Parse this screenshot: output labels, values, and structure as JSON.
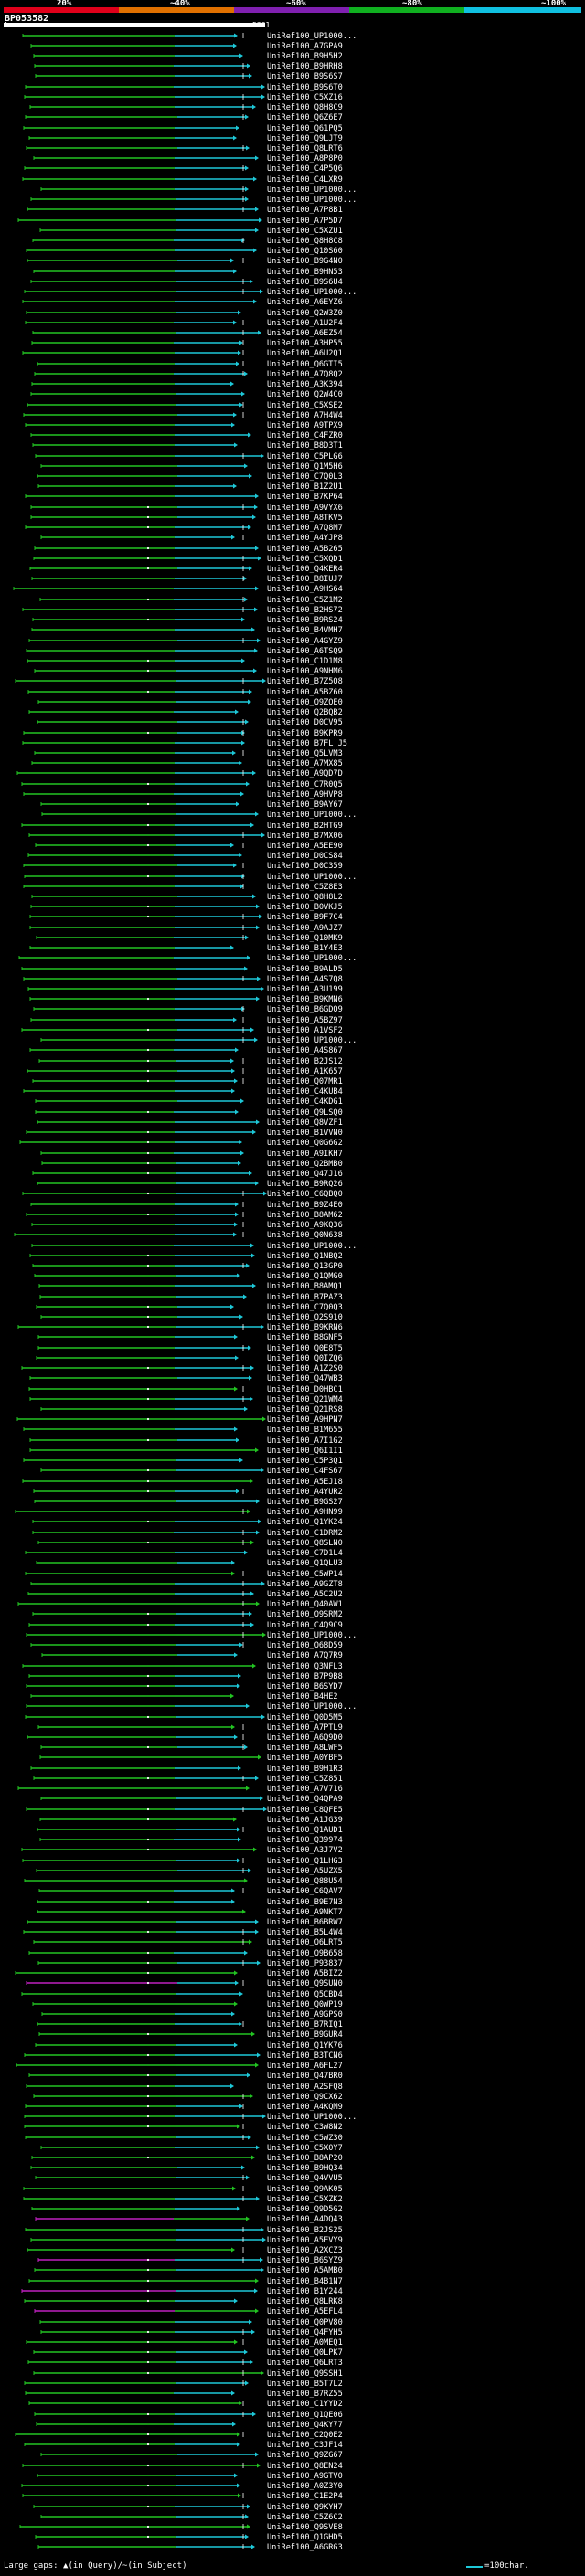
{
  "legend": {
    "labels": [
      "20%",
      "~40%",
      "~60%",
      "~80%",
      "~100%"
    ],
    "colors": [
      "#e0001a",
      "#e07000",
      "#8020b0",
      "#10b020",
      "#10c0e0"
    ]
  },
  "query": {
    "id": "BP053582",
    "start": "1",
    "end": "5361"
  },
  "colors": {
    "green": "#22c422",
    "cyan": "#1ec8d8",
    "magenta": "#c020c0",
    "gap_white": "#ffffff"
  },
  "hits": [
    "UniRef100_UP1000...",
    "UniRef100_A7GPA9",
    "UniRef100_B9H5H2",
    "UniRef100_B9HRH8",
    "UniRef100_B9S6S7",
    "UniRef100_B9S6T0",
    "UniRef100_C5XZ16",
    "UniRef100_Q8H8C9",
    "UniRef100_Q6Z6E7",
    "UniRef100_Q61PQ5",
    "UniRef100_Q9LJT9",
    "UniRef100_Q8LRT6",
    "UniRef100_A8P8P0",
    "UniRef100_C4P5Q6",
    "UniRef100_C4LXR9",
    "UniRef100_UP1000...",
    "UniRef100_UP1000...",
    "UniRef100_A7P8B1",
    "UniRef100_A7P5D7",
    "UniRef100_C5XZU1",
    "UniRef100_Q8H8C8",
    "UniRef100_Q10S60",
    "UniRef100_B9G4N0",
    "UniRef100_B9HN53",
    "UniRef100_B9S6U4",
    "UniRef100_UP1000...",
    "UniRef100_A6EYZ6",
    "UniRef100_Q2W3Z0",
    "UniRef100_A1U2F4",
    "UniRef100_A6EZ54",
    "UniRef100_A3HP55",
    "UniRef100_A6U2Q1",
    "UniRef100_Q6GTI5",
    "UniRef100_A7Q8Q2",
    "UniRef100_A3K394",
    "UniRef100_Q2W4C0",
    "UniRef100_C5XSE2",
    "UniRef100_A7H4W4",
    "UniRef100_A9TPX9",
    "UniRef100_C4FZR0",
    "UniRef100_B8D3T1",
    "UniRef100_C5PLG6",
    "UniRef100_Q1M5H6",
    "UniRef100_C7Q0L3",
    "UniRef100_B1Z2U1",
    "UniRef100_B7KP64",
    "UniRef100_A9VYX6",
    "UniRef100_A8TKV5",
    "UniRef100_A7Q8M7",
    "UniRef100_A4YJP8",
    "UniRef100_A5B265",
    "UniRef100_C5XQD1",
    "UniRef100_Q4KER4",
    "UniRef100_B8IUJ7",
    "UniRef100_A9HS64",
    "UniRef100_C5Z1M2",
    "UniRef100_B2HS72",
    "UniRef100_B9RS24",
    "UniRef100_B4VMH7",
    "UniRef100_A4GYZ9",
    "UniRef100_A6TSQ9",
    "UniRef100_C1D1M8",
    "UniRef100_A9NHM6",
    "UniRef100_B7Z5Q8",
    "UniRef100_A5BZ60",
    "UniRef100_Q9ZQE0",
    "UniRef100_Q2BQB2",
    "UniRef100_D0CV95",
    "UniRef100_B9KPR9",
    "UniRef100_B7FL_J5",
    "UniRef100_Q5LVM3",
    "UniRef100_A7MX85",
    "UniRef100_A9QD7D",
    "UniRef100_C7R0Q5",
    "UniRef100_A9HVP8",
    "UniRef100_B9AY67",
    "UniRef100_UP1000...",
    "UniRef100_B2HTG9",
    "UniRef100_B7MX06",
    "UniRef100_A5EE90",
    "UniRef100_D0CS84",
    "UniRef100_D0C359",
    "UniRef100_UP1000...",
    "UniRef100_C5Z8E3",
    "UniRef100_Q8H8L2",
    "UniRef100_B0VKJ5",
    "UniRef100_B9F7C4",
    "UniRef100_A9AJZ7",
    "UniRef100_Q10MK9",
    "UniRef100_B1Y4E3",
    "UniRef100_UP1000...",
    "UniRef100_B9ALD5",
    "UniRef100_A4S7Q8",
    "UniRef100_A3U199",
    "UniRef100_B9KMN6",
    "UniRef100_B6GDQ9",
    "UniRef100_A5BZ97",
    "UniRef100_A1VSF2",
    "UniRef100_UP1000...",
    "UniRef100_A4S867",
    "UniRef100_B2JS12",
    "UniRef100_A1K657",
    "UniRef100_Q07MR1",
    "UniRef100_C4KUB4",
    "UniRef100_C4KDG1",
    "UniRef100_Q9LSQ0",
    "UniRef100_Q8VZF1",
    "UniRef100_B1VVN0",
    "UniRef100_Q0G6G2",
    "UniRef100_A9IKH7",
    "UniRef100_Q2BMB0",
    "UniRef100_Q47J16",
    "UniRef100_B9RQ26",
    "UniRef100_C6QBQ0",
    "UniRef100_B9Z4E0",
    "UniRef100_B8AM62",
    "UniRef100_A9KQ36",
    "UniRef100_Q0N638",
    "UniRef100_UP1000...",
    "UniRef100_Q1NBQ2",
    "UniRef100_Q13GP0",
    "UniRef100_Q1QMG0",
    "UniRef100_B8AMQ1",
    "UniRef100_B7PAZ3",
    "UniRef100_C7Q0Q3",
    "UniRef100_Q2S910",
    "UniRef100_B9KRN6",
    "UniRef100_B8GNF5",
    "UniRef100_Q0E8T5",
    "UniRef100_Q0IZQ6",
    "UniRef100_A1Z2S0",
    "UniRef100_Q47WB3",
    "UniRef100_D0HBC1",
    "UniRef100_Q21WM4",
    "UniRef100_Q21RS8",
    "UniRef100_A9HPN7",
    "UniRef100_B1M655",
    "UniRef100_A7I1G2",
    "UniRef100_Q6I1I1",
    "UniRef100_C5P3Q1",
    "UniRef100_C4FS67",
    "UniRef100_A5EJ18",
    "UniRef100_A4YUR2",
    "UniRef100_B9GS27",
    "UniRef100_A9HN99",
    "UniRef100_Q1YK24",
    "UniRef100_C1DRM2",
    "UniRef100_Q8SLN0",
    "UniRef100_C7D1L4",
    "UniRef100_Q1QLU3",
    "UniRef100_C5WP14",
    "UniRef100_A9GZT8",
    "UniRef100_A5C2U2",
    "UniRef100_Q40AW1",
    "UniRef100_Q9SRM2",
    "UniRef100_C4Q9C9",
    "UniRef100_UP1000...",
    "UniRef100_Q68D59",
    "UniRef100_A7Q7R9",
    "UniRef100_Q3NFL3",
    "UniRef100_B7P9B8",
    "UniRef100_B6SYD7",
    "UniRef100_B4HE2",
    "UniRef100_UP1000...",
    "UniRef100_Q0D5M5",
    "UniRef100_A7PTL9",
    "UniRef100_A6Q9D0",
    "UniRef100_A8LWF5",
    "UniRef100_A0YBF5",
    "UniRef100_B9H1R3",
    "UniRef100_C5Z851",
    "UniRef100_A7V716",
    "UniRef100_Q4QPA9",
    "UniRef100_C8QFE5",
    "UniRef100_A1JG39",
    "UniRef100_Q1AUD1",
    "UniRef100_Q39974",
    "UniRef100_A3J7V2",
    "UniRef100_Q1LHG3",
    "UniRef100_A5UZX5",
    "UniRef100_Q88U54",
    "UniRef100_C6QAV7",
    "UniRef100_B9E7N3",
    "UniRef100_A9NKT7",
    "UniRef100_B6BRW7",
    "UniRef100_B5L4W4",
    "UniRef100_Q6LRT5",
    "UniRef100_Q9B658",
    "UniRef100_P93837",
    "UniRef100_A5BIZ2",
    "UniRef100_Q9SUN0",
    "UniRef100_Q5CBD4",
    "UniRef100_Q0WP19",
    "UniRef100_A9GPS0",
    "UniRef100_B7RIQ1",
    "UniRef100_B9GUR4",
    "UniRef100_Q1YK76",
    "UniRef100_B3TCN6",
    "UniRef100_A6FL27",
    "UniRef100_Q47BR0",
    "UniRef100_A2SFQ8",
    "UniRef100_Q9CX62",
    "UniRef100_A4KQM9",
    "UniRef100_UP1000...",
    "UniRef100_C3W8N2",
    "UniRef100_C5WZ30",
    "UniRef100_C5X0Y7",
    "UniRef100_B8AP20",
    "UniRef100_B9HQ34",
    "UniRef100_Q4VVU5",
    "UniRef100_Q9AK05",
    "UniRef100_C5XZK2",
    "UniRef100_Q9D5G2",
    "UniRef100_A4DQ43",
    "UniRef100_B2JS25",
    "UniRef100_A5EVY9",
    "UniRef100_A2XCZ3",
    "UniRef100_B6SYZ9",
    "UniRef100_A5AMB0",
    "UniRef100_B4B1N7",
    "UniRef100_B1Y244",
    "UniRef100_Q8LRK8",
    "UniRef100_A5EFL4",
    "UniRef100_Q0PV80",
    "UniRef100_Q4FYH5",
    "UniRef100_A0MEQ1",
    "UniRef100_Q0LPK7",
    "UniRef100_Q6LRT3",
    "UniRef100_Q9SSH1",
    "UniRef100_B5T7L2",
    "UniRef100_B7RZ55",
    "UniRef100_C1YYD2",
    "UniRef100_Q1QE06",
    "UniRef100_Q4KY77",
    "UniRef100_C2Q0E2",
    "UniRef100_C3JF14",
    "UniRef100_Q9ZG67",
    "UniRef100_Q8EN24",
    "UniRef100_A9GTV0",
    "UniRef100_A0Z3Y0",
    "UniRef100_C1E2P4",
    "UniRef100_Q9KYH7",
    "UniRef100_C5Z6C2",
    "UniRef100_Q9SVE8",
    "UniRef100_Q1GHD5",
    "UniRef100_A6GRG3"
  ],
  "footer": {
    "left": "Large gaps: ▲(in Query)/~(in Subject)",
    "right": "=100char."
  }
}
